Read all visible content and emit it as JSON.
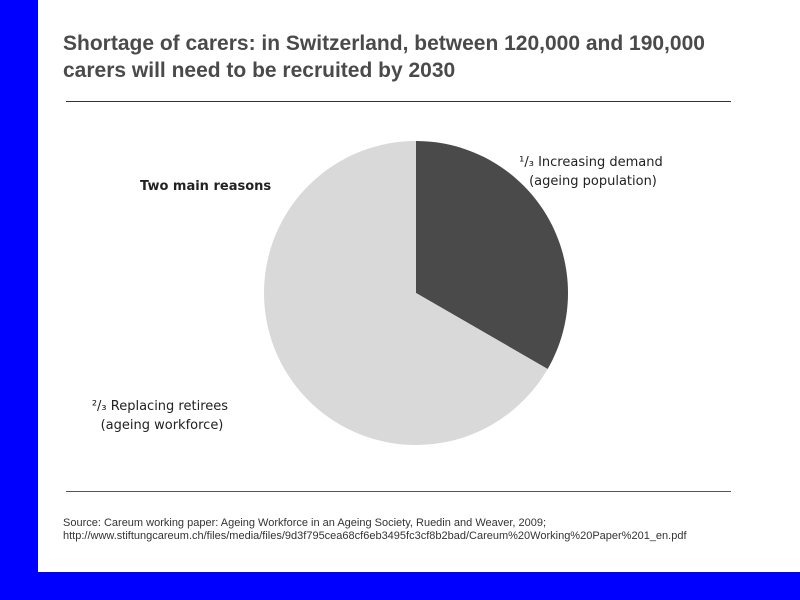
{
  "title": "Shortage of carers: in Switzerland, between 120,000 and 190,000 carers will need to be recruited by 2030",
  "colors": {
    "background": "#0000ff",
    "slide": "#ffffff",
    "demand": "#4a4a4a",
    "retirees": "#d9d9d9"
  },
  "chart_data": {
    "type": "pie",
    "annotation": "Two main reasons",
    "slices": [
      {
        "label_lines": [
          "¹/₃ Increasing demand",
          "(ageing population)"
        ],
        "value": 0.3333,
        "color": "#4a4a4a"
      },
      {
        "label_lines": [
          "²/₃ Replacing retirees",
          "(ageing workforce)"
        ],
        "value": 0.6667,
        "color": "#d9d9d9"
      }
    ]
  },
  "source": {
    "line1": "Source: Careum working paper: Ageing Workforce in an Ageing Society, Ruedin and Weaver, 2009;",
    "line2": "http://www.stiftungcareum.ch/files/media/files/9d3f795cea68cf6eb3495fc3cf8b2bad/Careum%20Working%20Paper%201_en.pdf"
  }
}
